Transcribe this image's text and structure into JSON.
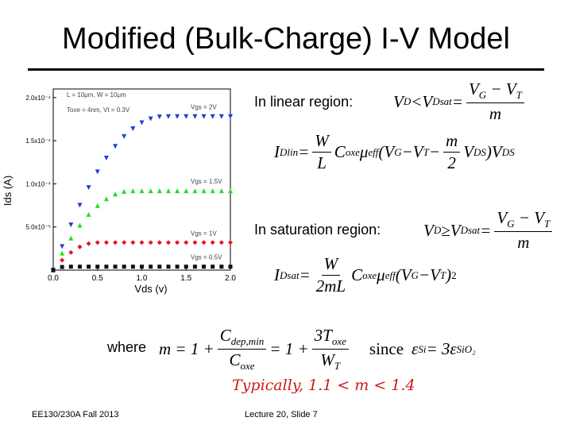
{
  "title": "Modified (Bulk-Charge) I-V Model",
  "chart_data": {
    "type": "scatter",
    "x_label": "Vds (v)",
    "y_label": "Ids (A)",
    "annotations": [
      "L = 10μm, W = 10μm",
      "Toxe = 4nm, Vt = 0.3V"
    ],
    "x": [
      0,
      0.1,
      0.2,
      0.3,
      0.4,
      0.5,
      0.6,
      0.7,
      0.8,
      0.9,
      1.0,
      1.1,
      1.2,
      1.3,
      1.4,
      1.5,
      1.6,
      1.7,
      1.8,
      1.9,
      2.0
    ],
    "xlim": [
      0,
      2
    ],
    "ylim": [
      0,
      0.00021
    ],
    "xticks": [
      {
        "value": 0,
        "label": "0.0"
      },
      0.5,
      {
        "value": 1,
        "label": "1.0"
      },
      1.5,
      {
        "value": 2,
        "label": "2.0"
      }
    ],
    "yticks": [
      {
        "value": 5e-05,
        "label": "5.0x10⁻⁵"
      },
      {
        "value": 0.0001,
        "label": "1.0x10⁻⁴"
      },
      {
        "value": 0.00015,
        "label": "1.5x10⁻⁴"
      },
      {
        "value": 0.0002,
        "label": "2.0x10⁻⁴"
      }
    ],
    "series": [
      {
        "name": "Vgs = 2V",
        "color": "#1f3fd6",
        "marker": "triangle-down",
        "values": [
          0,
          2.73e-05,
          5.24e-05,
          7.52e-05,
          9.57e-05,
          0.0001139,
          0.0001299,
          0.0001435,
          0.0001549,
          0.000164,
          0.0001709,
          0.0001754,
          0.0001777,
          0.000178,
          0.000178,
          0.000178,
          0.000178,
          0.000178,
          0.000178,
          0.000178,
          0.000178
        ]
      },
      {
        "name": "Vgs = 1.5V",
        "color": "#22dd22",
        "marker": "triangle-up",
        "values": [
          0,
          1.97e-05,
          3.71e-05,
          5.2e-05,
          6.46e-05,
          7.48e-05,
          8.27e-05,
          8.82e-05,
          9.12e-05,
          9.2e-05,
          9.2e-05,
          9.2e-05,
          9.2e-05,
          9.2e-05,
          9.2e-05,
          9.2e-05,
          9.2e-05,
          9.2e-05,
          9.2e-05,
          9.2e-05,
          9.2e-05
        ]
      },
      {
        "name": "Vgs = 1V",
        "color": "#e8141e",
        "marker": "diamond",
        "values": [
          0,
          1.15e-05,
          2.05e-05,
          2.69e-05,
          3.07e-05,
          3.2e-05,
          3.2e-05,
          3.2e-05,
          3.2e-05,
          3.2e-05,
          3.2e-05,
          3.2e-05,
          3.2e-05,
          3.2e-05,
          3.2e-05,
          3.2e-05,
          3.2e-05,
          3.2e-05,
          3.2e-05,
          3.2e-05,
          3.2e-05
        ]
      },
      {
        "name": "Vgs = 0.5V",
        "color": "#111111",
        "marker": "square",
        "values": [
          0,
          3.6e-06,
          4e-06,
          4e-06,
          4e-06,
          4e-06,
          4e-06,
          4e-06,
          4e-06,
          4e-06,
          4e-06,
          4e-06,
          4e-06,
          4e-06,
          4e-06,
          4e-06,
          4e-06,
          4e-06,
          4e-06,
          4e-06,
          4e-06
        ]
      }
    ]
  },
  "labels": {
    "linear": "In linear region:",
    "saturation": "In saturation region:",
    "where": "where"
  },
  "equations": [
    [
      {
        "t": "V",
        "s": "D"
      },
      " < ",
      {
        "t": "V",
        "s": "Dsat"
      },
      " = ",
      {
        "num": [
          {
            "t": "V",
            "s": "G"
          },
          " − ",
          {
            "t": "V",
            "s": "T"
          }
        ],
        "den": [
          "m"
        ]
      }
    ],
    [
      {
        "t": "I",
        "s": "Dlin"
      },
      " = ",
      {
        "num": [
          "W"
        ],
        "den": [
          "L"
        ]
      },
      {
        "t": "C",
        "s": "oxe"
      },
      {
        "t": "μ",
        "s": "eff"
      },
      "(",
      {
        "t": "V",
        "s": "G"
      },
      " − ",
      {
        "t": "V",
        "s": "T"
      },
      " − ",
      {
        "num": [
          "m"
        ],
        "den": [
          "2"
        ]
      },
      {
        "t": "V",
        "s": "DS"
      },
      ")",
      {
        "t": "V",
        "s": "DS"
      }
    ],
    [
      {
        "t": "V",
        "s": "D"
      },
      " ≥ ",
      {
        "t": "V",
        "s": "Dsat"
      },
      " = ",
      {
        "num": [
          {
            "t": "V",
            "s": "G"
          },
          " − ",
          {
            "t": "V",
            "s": "T"
          }
        ],
        "den": [
          "m"
        ]
      }
    ],
    [
      {
        "t": "I",
        "s": "Dsat"
      },
      " = ",
      {
        "num": [
          "W"
        ],
        "den": [
          "2mL"
        ]
      },
      {
        "t": "C",
        "s": "oxe"
      },
      {
        "t": "μ",
        "s": "eff"
      },
      "(",
      {
        "t": "V",
        "s": "G"
      },
      " − ",
      {
        "t": "V",
        "s": "T"
      },
      ")",
      {
        "sup": "2"
      }
    ],
    [
      "m = 1 + ",
      {
        "num": [
          {
            "t": "C",
            "s": "dep,min"
          }
        ],
        "den": [
          {
            "t": "C",
            "s": "oxe"
          }
        ]
      },
      " = 1 + ",
      {
        "num": [
          "3",
          {
            "t": "T",
            "s": "oxe"
          }
        ],
        "den": [
          {
            "t": "W",
            "s": "T"
          }
        ]
      },
      {
        "up": "since"
      },
      {
        "t": "ε",
        "s": "Si"
      },
      " = 3",
      {
        "t": "ε",
        "s": "SiO₂"
      }
    ]
  ],
  "handwritten": "Typically, 1.1 < m < 1.4",
  "footer": {
    "left": "EE130/230A Fall 2013",
    "center": "Lecture 20, Slide 7"
  }
}
